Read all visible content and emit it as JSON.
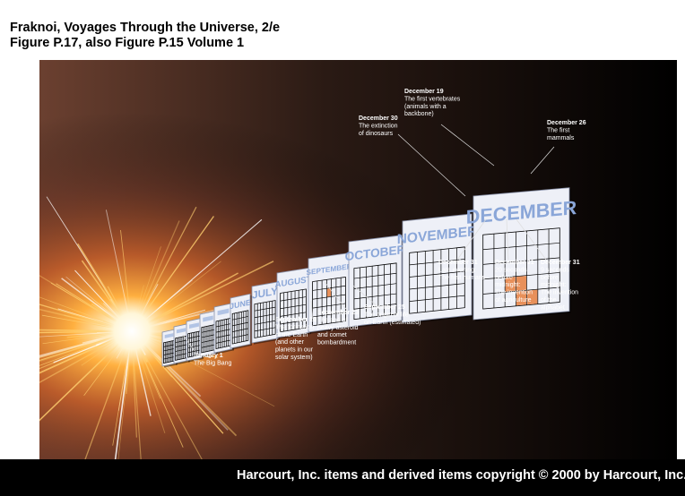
{
  "header": {
    "line1": "Fraknoi, Voyages Through the Universe, 2/e",
    "line2": "Figure P.17, also Figure P.15 Volume 1"
  },
  "footer": {
    "copyright": "Harcourt, Inc. items and derived items copyright © 2000 by Harcourt, Inc."
  },
  "months": [
    "",
    "",
    "",
    "",
    "",
    "JUNE",
    "JULY",
    "AUGUST",
    "SEPTEMBER",
    "OCTOBER",
    "NOVEMBER",
    "DECEMBER"
  ],
  "annotations": {
    "jan1": [
      "January 1",
      "The Big Bang"
    ],
    "sep10": [
      "September 10",
      "The formation",
      "of the Earth",
      "(and other",
      "planets in our",
      "solar system)"
    ],
    "sep23": [
      "September 23",
      "The end of",
      "heavy asteroid",
      "and comet",
      "bombardment"
    ],
    "sep25": [
      "September 25",
      "The origin of life",
      "on Earth (estimated)"
    ],
    "dec30": [
      "December 30",
      "The extinction",
      "of dinosaurs"
    ],
    "dec19": [
      "December 19",
      "The first vertebrates",
      "(animals with a",
      "backbone)"
    ],
    "dec26": [
      "December 26",
      "The first",
      "mammals"
    ],
    "dec31a": [
      "December 31",
      "Late evening:",
      "The first humans"
    ],
    "dec31b": [
      "December 31",
      "20 seconds",
      "before",
      "midnight:",
      "The invention",
      "of agriculture"
    ],
    "dec31c": [
      "December 31",
      "9 seconds",
      "before",
      "midnight:",
      "The invention",
      "of the",
      "alphabet"
    ]
  },
  "colors": {
    "month_text": "#8aa6d8",
    "calendar_page": "#eef0f7",
    "grid": "#000000",
    "highlight": "#e8905a",
    "annotation": "#ffffff"
  }
}
